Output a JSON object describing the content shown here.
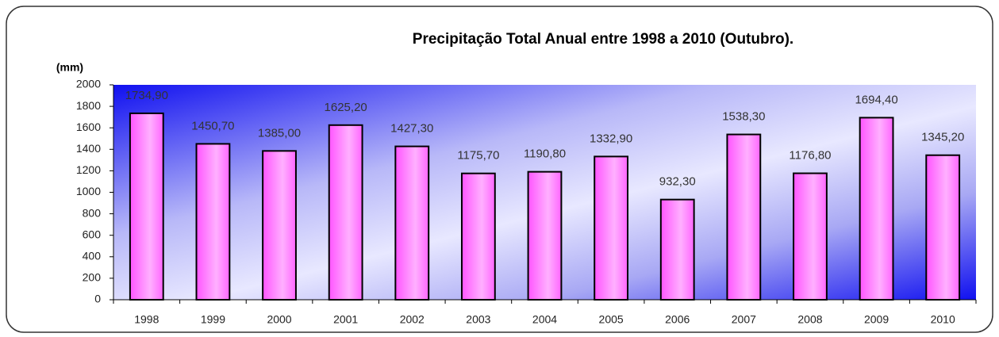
{
  "chart_data": {
    "type": "bar",
    "title": "Precipitação Total Anual entre 1998 a 2010 (Outubro).",
    "y_label": "(mm)",
    "categories": [
      "1998",
      "1999",
      "2000",
      "2001",
      "2002",
      "2003",
      "2004",
      "2005",
      "2006",
      "2007",
      "2008",
      "2009",
      "2010"
    ],
    "values": [
      1734.9,
      1450.7,
      1385.0,
      1625.2,
      1427.3,
      1175.7,
      1190.8,
      1332.9,
      932.3,
      1538.3,
      1176.8,
      1694.4,
      1345.2
    ],
    "value_labels": [
      "1734,90",
      "1450,70",
      "1385,00",
      "1625,20",
      "1427,30",
      "1175,70",
      "1190,80",
      "1332,90",
      "932,30",
      "1538,30",
      "1176,80",
      "1694,40",
      "1345,20"
    ],
    "color": "#ff66ff",
    "ylim": [
      0,
      2000
    ],
    "yticks": [
      0,
      200,
      400,
      600,
      800,
      1000,
      1200,
      1400,
      1600,
      1800,
      2000
    ]
  }
}
